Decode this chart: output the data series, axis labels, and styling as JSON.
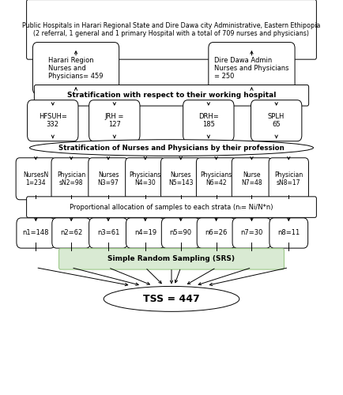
{
  "title_box": "Public Hospitals in Harari Regional State and Dire Dawa city Administrative, Eastern Ethipopia\n(2 referral, 1 general and 1 primary Hospital with a total of 709 nurses and physicians)",
  "harari_box": "Harari Region\nNurses and\nPhysicians= 459",
  "diredawa_box": "Dire Dawa Admin\nNurses and Physicians\n= 250",
  "strat1_box": "Stratification with respect to their working hospital",
  "hosp_boxes": [
    "HFSUH=\n332",
    "JRH =\n127",
    "DRH=\n185",
    "SPLH\n65"
  ],
  "strat2_box": "Stratification of Nurses and Physicians by their profession",
  "prof_boxes": [
    "NursesN\n1=234",
    "Physician\nsN2=98",
    "Nurses\nN3=97",
    "Physicians\nN4=30",
    "Nurses\nN5=143",
    "Physicians\nN6=42",
    "Nurse\nN7=48",
    "Physician\nsN8=17"
  ],
  "prop_box": "Proportional allocation of samples to each strata (nᵢ= Ni/N*n)",
  "sample_boxes": [
    "n1=148",
    "n2=62",
    "n3=61",
    "n4=19",
    "n5=90",
    "n6=26",
    "n7=30",
    "n8=11"
  ],
  "srs_box": "Simple Random Sampling (SRS)",
  "tss_box": "TSS = 447",
  "bg_color": "#ffffff",
  "box_facecolor": "#ffffff",
  "box_edgecolor": "#000000",
  "srs_facecolor": "#d9ead3",
  "srs_edgecolor": "#93c47d"
}
